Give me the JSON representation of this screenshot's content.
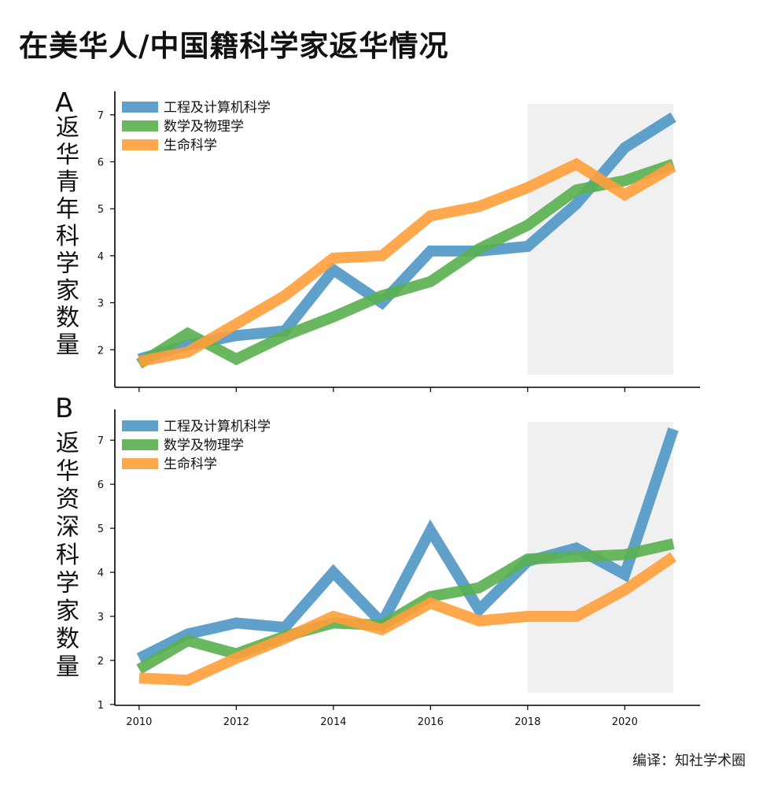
{
  "title": "在美华人/中国籍科学家返华情况",
  "credit": "编译：知社学术圈",
  "colors": {
    "engineering": "#4f97c6",
    "math": "#59b04f",
    "life": "#ff9f3a",
    "shade": "#f0f0f0"
  },
  "chart_data": [
    {
      "type": "line",
      "panel_label": "A",
      "ylabel": "返华青年科学家数量",
      "x": [
        2010,
        2011,
        2012,
        2013,
        2014,
        2015,
        2016,
        2017,
        2018,
        2019,
        2020,
        2021
      ],
      "xticks": [
        2010,
        2012,
        2014,
        2016,
        2018,
        2020
      ],
      "yticks": [
        2,
        3,
        4,
        5,
        6,
        7
      ],
      "xlim": [
        2009.5,
        2021.55
      ],
      "ylim": [
        1.2,
        7.5
      ],
      "shaded_region": [
        2018,
        2021
      ],
      "legend_position": "top-left",
      "series": [
        {
          "name": "工程及计算机科学",
          "color_key": "engineering",
          "values": [
            1.8,
            2.1,
            2.3,
            2.4,
            3.7,
            3.0,
            4.1,
            4.1,
            4.2,
            5.1,
            6.3,
            6.95
          ]
        },
        {
          "name": "数学及物理学",
          "color_key": "math",
          "values": [
            1.7,
            2.35,
            1.8,
            2.3,
            2.7,
            3.15,
            3.45,
            4.15,
            4.65,
            5.4,
            5.6,
            5.95
          ]
        },
        {
          "name": "生命科学",
          "color_key": "life",
          "values": [
            1.75,
            1.95,
            2.55,
            3.15,
            3.95,
            4.0,
            4.85,
            5.05,
            5.45,
            5.95,
            5.3,
            5.9
          ]
        }
      ]
    },
    {
      "type": "line",
      "panel_label": "B",
      "ylabel": "返华资深科学家数量",
      "x": [
        2010,
        2011,
        2012,
        2013,
        2014,
        2015,
        2016,
        2017,
        2018,
        2019,
        2020,
        2021
      ],
      "xticks": [
        2010,
        2012,
        2014,
        2016,
        2018,
        2020
      ],
      "yticks": [
        1,
        2,
        3,
        4,
        5,
        6,
        7
      ],
      "xlim": [
        2009.5,
        2021.55
      ],
      "ylim": [
        0.98,
        7.7
      ],
      "shaded_region": [
        2018,
        2021
      ],
      "legend_position": "top-left",
      "series": [
        {
          "name": "工程及计算机科学",
          "color_key": "engineering",
          "values": [
            2.05,
            2.6,
            2.85,
            2.75,
            4.0,
            2.85,
            4.95,
            3.15,
            4.25,
            4.55,
            3.95,
            7.25
          ]
        },
        {
          "name": "数学及物理学",
          "color_key": "math",
          "values": [
            1.8,
            2.45,
            2.15,
            2.55,
            2.85,
            2.8,
            3.45,
            3.65,
            4.3,
            4.35,
            4.4,
            4.65
          ]
        },
        {
          "name": "生命科学",
          "color_key": "life",
          "values": [
            1.6,
            1.55,
            2.05,
            2.5,
            3.0,
            2.7,
            3.3,
            2.9,
            3.0,
            3.0,
            3.6,
            4.35
          ]
        }
      ]
    }
  ]
}
